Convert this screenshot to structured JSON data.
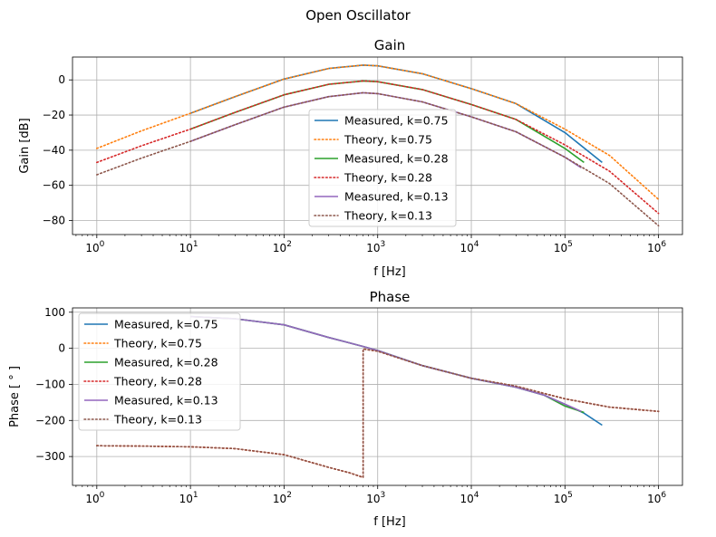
{
  "figure": {
    "suptitle": "Open Oscillator"
  },
  "chart_data": [
    {
      "type": "line",
      "title": "Gain",
      "xlabel": "f [Hz]",
      "ylabel": "Gain [dB]",
      "xscale": "log",
      "xlim": [
        0.55,
        1800000
      ],
      "ylim": [
        -88,
        13
      ],
      "xticks": [
        1,
        10,
        100,
        1000,
        10000,
        100000,
        1000000
      ],
      "xtick_labels": [
        {
          "base": "10",
          "exp": "0"
        },
        {
          "base": "10",
          "exp": "1"
        },
        {
          "base": "10",
          "exp": "2"
        },
        {
          "base": "10",
          "exp": "3"
        },
        {
          "base": "10",
          "exp": "4"
        },
        {
          "base": "10",
          "exp": "5"
        },
        {
          "base": "10",
          "exp": "6"
        }
      ],
      "yticks": [
        0,
        -20,
        -40,
        -60,
        -80
      ],
      "ytick_labels": [
        "0",
        "−20",
        "−40",
        "−60",
        "−80"
      ],
      "grid": true,
      "legend_position": "lower-center",
      "series": [
        {
          "name": "Measured, k=0.75",
          "color": "#1f77b4",
          "style": "solid",
          "x": [
            10,
            30,
            100,
            300,
            700,
            1000,
            3000,
            10000,
            30000,
            100000,
            250000
          ],
          "y": [
            -19,
            -9.5,
            0.5,
            6.5,
            8.4,
            8.0,
            3.5,
            -5,
            -13.5,
            -30,
            -47
          ]
        },
        {
          "name": "Theory, k=0.75",
          "color": "#ff7f0e",
          "style": "dotted",
          "x": [
            1,
            3,
            10,
            30,
            100,
            300,
            700,
            1000,
            3000,
            10000,
            30000,
            100000,
            300000,
            1000000
          ],
          "y": [
            -39,
            -29,
            -19,
            -9.5,
            0.5,
            6.5,
            8.4,
            8.0,
            3.5,
            -5,
            -13.5,
            -28,
            -43,
            -68
          ]
        },
        {
          "name": "Measured, k=0.28",
          "color": "#2ca02c",
          "style": "solid",
          "x": [
            10,
            30,
            100,
            300,
            700,
            1000,
            3000,
            10000,
            30000,
            100000,
            160000
          ],
          "y": [
            -28,
            -18.5,
            -8.5,
            -2.5,
            -0.6,
            -1,
            -5.5,
            -14,
            -22.5,
            -39,
            -47
          ]
        },
        {
          "name": "Theory, k=0.28",
          "color": "#d62728",
          "style": "dotted",
          "x": [
            1,
            3,
            10,
            30,
            100,
            300,
            700,
            1000,
            3000,
            10000,
            30000,
            100000,
            300000,
            1000000
          ],
          "y": [
            -47,
            -37.5,
            -28,
            -18.5,
            -8.5,
            -2.5,
            -0.6,
            -1,
            -5.5,
            -14,
            -22.5,
            -37,
            -52,
            -76
          ]
        },
        {
          "name": "Measured, k=0.13",
          "color": "#9467bd",
          "style": "solid",
          "x": [
            10,
            30,
            100,
            300,
            700,
            1000,
            3000,
            10000,
            30000,
            100000,
            150000
          ],
          "y": [
            -35,
            -25.5,
            -15.5,
            -9.5,
            -7.3,
            -7.8,
            -12.5,
            -21,
            -29.5,
            -44,
            -50
          ]
        },
        {
          "name": "Theory, k=0.13",
          "color": "#8c564b",
          "style": "dotted",
          "x": [
            1,
            3,
            10,
            30,
            100,
            300,
            700,
            1000,
            3000,
            10000,
            30000,
            100000,
            300000,
            1000000
          ],
          "y": [
            -54,
            -44.5,
            -35,
            -25.5,
            -15.5,
            -9.5,
            -7.3,
            -7.8,
            -12.5,
            -21,
            -29.5,
            -44,
            -59,
            -83
          ]
        }
      ]
    },
    {
      "type": "line",
      "title": "Phase",
      "xlabel": "f [Hz]",
      "ylabel": "Phase [ ° ]",
      "xscale": "log",
      "xlim": [
        0.55,
        1800000
      ],
      "ylim": [
        -380,
        112
      ],
      "xticks": [
        1,
        10,
        100,
        1000,
        10000,
        100000,
        1000000
      ],
      "xtick_labels": [
        {
          "base": "10",
          "exp": "0"
        },
        {
          "base": "10",
          "exp": "1"
        },
        {
          "base": "10",
          "exp": "2"
        },
        {
          "base": "10",
          "exp": "3"
        },
        {
          "base": "10",
          "exp": "4"
        },
        {
          "base": "10",
          "exp": "5"
        },
        {
          "base": "10",
          "exp": "6"
        }
      ],
      "yticks": [
        100,
        0,
        -100,
        -200,
        -300
      ],
      "ytick_labels": [
        "100",
        "0",
        "−100",
        "−200",
        "−300"
      ],
      "grid": true,
      "legend_position": "upper-left",
      "series": [
        {
          "name": "Measured, k=0.75",
          "color": "#1f77b4",
          "style": "solid",
          "x": [
            10,
            30,
            100,
            300,
            700,
            1000,
            3000,
            10000,
            30000,
            60000,
            100000,
            160000,
            250000
          ],
          "y": [
            88,
            82,
            65,
            30,
            5,
            -6,
            -48,
            -83,
            -108,
            -130,
            -155,
            -180,
            -213
          ]
        },
        {
          "name": "Theory, k=0.75",
          "color": "#ff7f0e",
          "style": "dotted",
          "x": [
            1,
            3,
            10,
            30,
            100,
            300,
            500,
            700,
            700,
            1000,
            3000,
            10000,
            30000,
            100000,
            300000,
            1000000
          ],
          "y": [
            -270,
            -271,
            -273,
            -278,
            -295,
            -330,
            -345,
            -358,
            -2,
            -8,
            -48,
            -83,
            -105,
            -140,
            -163,
            -175
          ]
        },
        {
          "name": "Measured, k=0.28",
          "color": "#2ca02c",
          "style": "solid",
          "x": [
            10,
            30,
            100,
            300,
            700,
            1000,
            3000,
            10000,
            30000,
            60000,
            100000,
            160000
          ],
          "y": [
            88,
            82,
            65,
            30,
            5,
            -6,
            -48,
            -83,
            -108,
            -130,
            -160,
            -178
          ]
        },
        {
          "name": "Theory, k=0.28",
          "color": "#d62728",
          "style": "dotted",
          "x": [
            1,
            3,
            10,
            30,
            100,
            300,
            500,
            700,
            700,
            1000,
            3000,
            10000,
            30000,
            100000,
            300000,
            1000000
          ],
          "y": [
            -270,
            -271,
            -273,
            -278,
            -295,
            -330,
            -345,
            -358,
            -2,
            -8,
            -48,
            -83,
            -105,
            -140,
            -163,
            -175
          ]
        },
        {
          "name": "Measured, k=0.13",
          "color": "#9467bd",
          "style": "solid",
          "x": [
            10,
            30,
            100,
            300,
            700,
            1000,
            3000,
            10000,
            30000,
            60000,
            100000,
            150000
          ],
          "y": [
            88,
            82,
            65,
            30,
            5,
            -6,
            -48,
            -83,
            -108,
            -130,
            -155,
            -175
          ]
        },
        {
          "name": "Theory, k=0.13",
          "color": "#8c564b",
          "style": "dotted",
          "x": [
            1,
            3,
            10,
            30,
            100,
            300,
            500,
            700,
            700,
            1000,
            3000,
            10000,
            30000,
            100000,
            300000,
            1000000
          ],
          "y": [
            -270,
            -271,
            -273,
            -278,
            -295,
            -330,
            -345,
            -358,
            -2,
            -8,
            -48,
            -83,
            -105,
            -140,
            -163,
            -175
          ]
        }
      ]
    }
  ]
}
